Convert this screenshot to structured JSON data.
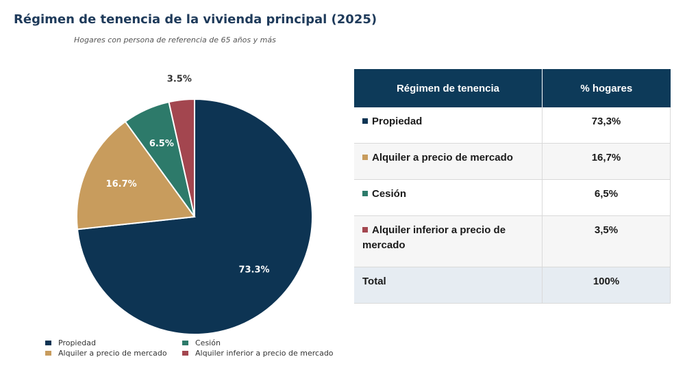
{
  "header": {
    "title": "Régimen de tenencia de la vivienda principal (2025)",
    "subtitle": "Hogares con persona de referencia de 65 años y más"
  },
  "colors": {
    "propiedad": "#0d3453",
    "alquiler_mercado": "#c89c5d",
    "cesion": "#2d7a6a",
    "alquiler_inferior": "#a3464f",
    "table_header": "#0d3a59"
  },
  "chart_data": {
    "type": "pie",
    "title": "Régimen de tenencia de la vivienda principal (2025)",
    "subtitle": "Hogares con persona de referencia de 65 años y más",
    "slices": [
      {
        "label": "Propiedad",
        "value": 73.3,
        "display": "73.3%",
        "color": "#0d3453"
      },
      {
        "label": "Alquiler a precio de mercado",
        "value": 16.7,
        "display": "16.7%",
        "color": "#c89c5d"
      },
      {
        "label": "Cesión",
        "value": 6.5,
        "display": "6.5%",
        "color": "#2d7a6a"
      },
      {
        "label": "Alquiler inferior a precio de mercado",
        "value": 3.5,
        "display": "3.5%",
        "color": "#a3464f"
      }
    ],
    "legend_position": "bottom"
  },
  "legend": {
    "items": [
      {
        "label": "Propiedad",
        "color": "#0d3453"
      },
      {
        "label": "Cesión",
        "color": "#2d7a6a"
      },
      {
        "label": "Alquiler a precio de mercado",
        "color": "#c89c5d"
      },
      {
        "label": "Alquiler inferior a precio de mercado",
        "color": "#a3464f"
      }
    ]
  },
  "table": {
    "headers": [
      "Régimen de tenencia",
      "% hogares"
    ],
    "rows": [
      {
        "label": "Propiedad",
        "value": "73,3%",
        "color": "#0d3453"
      },
      {
        "label": "Alquiler a precio de mercado",
        "value": "16,7%",
        "color": "#c89c5d"
      },
      {
        "label": "Cesión",
        "value": "6,5%",
        "color": "#2d7a6a"
      },
      {
        "label": "Alquiler inferior a precio de mercado",
        "value": "3,5%",
        "color": "#a3464f"
      }
    ],
    "total": {
      "label": "Total",
      "value": "100%"
    }
  }
}
